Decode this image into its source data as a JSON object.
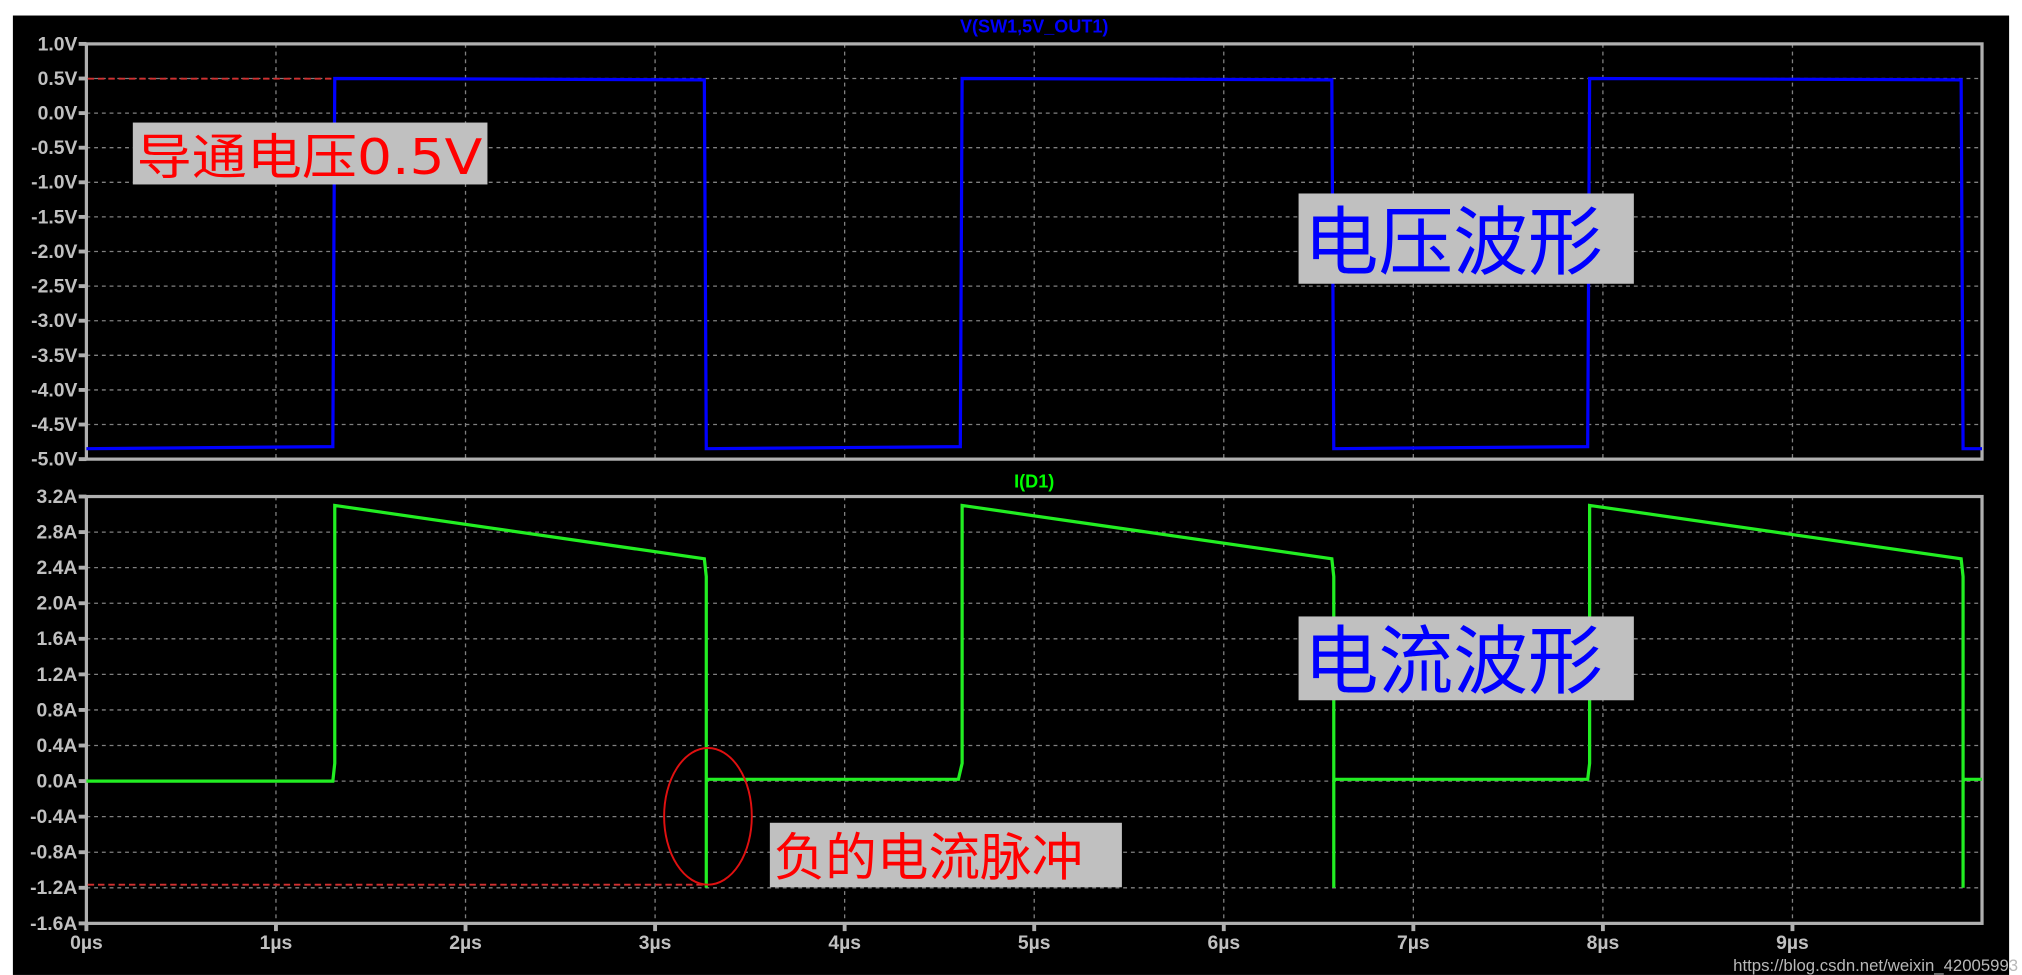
{
  "chart_data": [
    {
      "type": "line",
      "title": "V(SW1,5V_OUT1)",
      "title_color": "#0000ff",
      "xlim": [
        0,
        10
      ],
      "ylim": [
        -5.0,
        1.0
      ],
      "grid": true,
      "x_ticks": [
        "0µs",
        "1µs",
        "2µs",
        "3µs",
        "4µs",
        "5µs",
        "6µs",
        "7µs",
        "8µs",
        "9µs"
      ],
      "y_ticks": [
        "1.0V",
        "0.5V",
        "0.0V",
        "-0.5V",
        "-1.0V",
        "-1.5V",
        "-2.0V",
        "-2.5V",
        "-3.0V",
        "-3.5V",
        "-4.0V",
        "-4.5V",
        "-5.0V"
      ],
      "series": [
        {
          "color": "#0000ff",
          "x": [
            0,
            1.3,
            1.31,
            3.26,
            3.27,
            4.61,
            4.62,
            6.57,
            6.58,
            7.92,
            7.93,
            9.89,
            9.9,
            10.0
          ],
          "y": [
            -4.85,
            -4.82,
            0.5,
            0.48,
            -4.85,
            -4.82,
            0.5,
            0.48,
            -4.85,
            -4.82,
            0.5,
            0.48,
            -4.85,
            -4.85
          ]
        }
      ],
      "annotations": [
        {
          "text": "导通电压0.5V",
          "color": "#ff0000",
          "marker": "dashed line at 0.5V"
        },
        {
          "text": "电压波形",
          "color": "#0000ff"
        }
      ]
    },
    {
      "type": "line",
      "title": "I(D1)",
      "title_color": "#00ff00",
      "xlim": [
        0,
        10
      ],
      "ylim": [
        -1.6,
        3.2
      ],
      "grid": true,
      "x_ticks": [
        "0µs",
        "1µs",
        "2µs",
        "3µs",
        "4µs",
        "5µs",
        "6µs",
        "7µs",
        "8µs",
        "9µs"
      ],
      "y_ticks": [
        "3.2A",
        "2.8A",
        "2.4A",
        "2.0A",
        "1.6A",
        "1.2A",
        "0.8A",
        "0.4A",
        "0.0A",
        "-0.4A",
        "-0.8A",
        "-1.2A",
        "-1.6A"
      ],
      "series": [
        {
          "color": "#22ee22",
          "x": [
            0,
            1.3,
            1.31,
            1.31,
            3.26,
            3.27,
            3.27,
            3.27,
            3.28,
            4.6,
            4.62,
            4.62,
            6.57,
            6.58,
            6.58,
            6.58,
            6.59,
            7.92,
            7.93,
            7.93,
            9.89,
            9.9,
            9.9,
            9.9,
            9.91,
            10.0
          ],
          "y": [
            0,
            0,
            0.2,
            3.1,
            2.5,
            2.3,
            -1.2,
            0.0,
            0.02,
            0.02,
            0.2,
            3.1,
            2.5,
            2.3,
            -1.2,
            0.0,
            0.02,
            0.02,
            0.2,
            3.1,
            2.5,
            2.3,
            -1.2,
            0.0,
            0.02,
            0.02
          ]
        }
      ],
      "annotations": [
        {
          "text": "电流波形",
          "color": "#0000ff"
        },
        {
          "text": "负的电流脉冲",
          "color": "#ff0000",
          "marker": "ellipse around negative spike, dashed line at -1.2A"
        }
      ]
    }
  ],
  "watermark": "https://blog.csdn.net/weixin_42005993",
  "colors": {
    "background": "#000000",
    "axis": "#b0b0b0",
    "grid": "#808080",
    "annotation_box": "#c0c0c0"
  }
}
